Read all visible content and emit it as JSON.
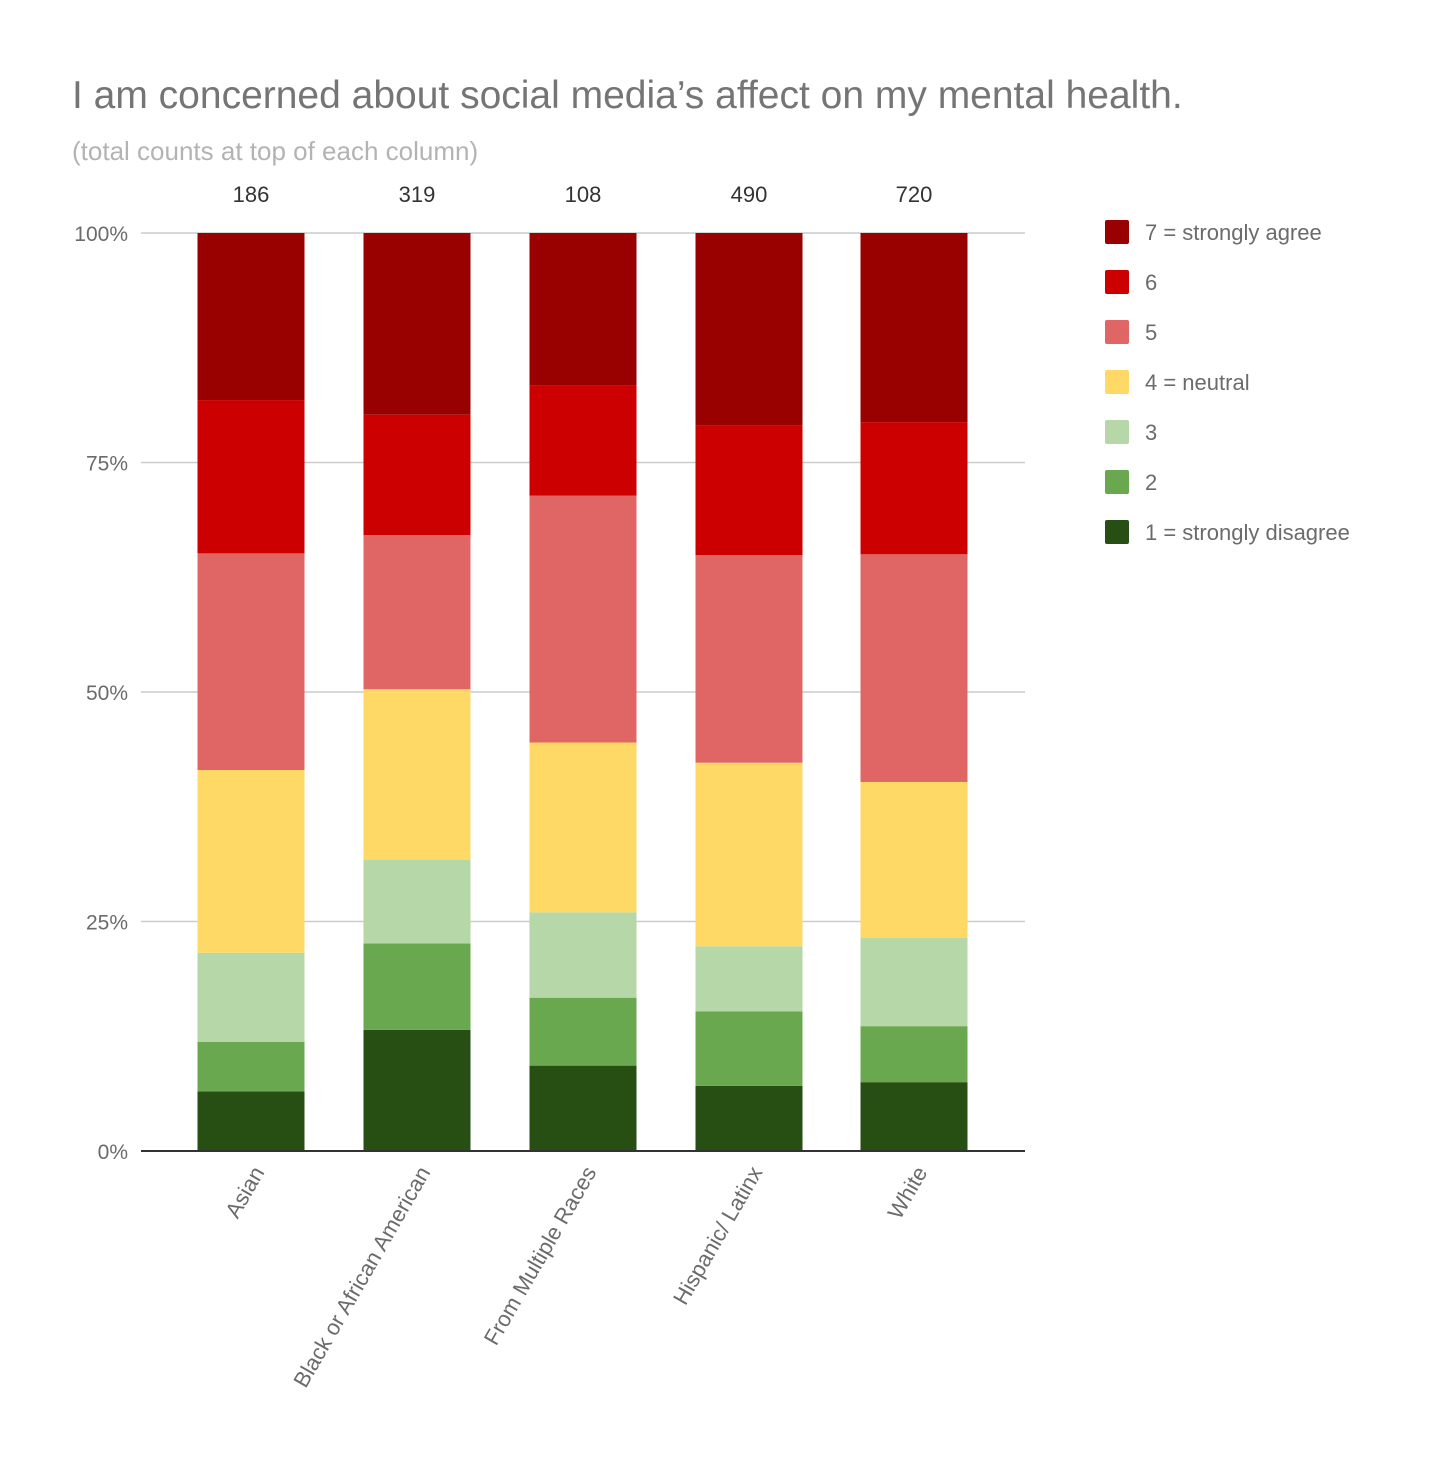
{
  "chart_data": {
    "type": "bar",
    "stacked": true,
    "normalized": true,
    "title": "I am concerned about social media’s affect on my mental health.",
    "subtitle": "(total counts at top of each column)",
    "categories": [
      "Asian",
      "Black or African American",
      "From Multiple Races",
      "Hispanic/ Latinx",
      "White"
    ],
    "totals": [
      "186",
      "319",
      "108",
      "490",
      "720"
    ],
    "y_ticks": [
      "0%",
      "25%",
      "50%",
      "75%",
      "100%"
    ],
    "ylim": [
      0,
      100
    ],
    "grid": true,
    "legend_position": "right",
    "series": [
      {
        "name": "1 = strongly disagree",
        "color": "#274e13",
        "values": [
          6.5,
          13.2,
          9.3,
          7.1,
          7.5
        ]
      },
      {
        "name": "2",
        "color": "#6aa84f",
        "values": [
          5.4,
          9.4,
          7.4,
          8.1,
          6.1
        ]
      },
      {
        "name": "3",
        "color": "#b6d7a8",
        "values": [
          9.7,
          9.1,
          9.3,
          7.1,
          9.6
        ]
      },
      {
        "name": "4 = neutral",
        "color": "#ffd966",
        "values": [
          19.9,
          18.6,
          18.5,
          20.0,
          17.0
        ]
      },
      {
        "name": "5",
        "color": "#e06666",
        "values": [
          23.6,
          16.8,
          26.9,
          22.6,
          24.8
        ]
      },
      {
        "name": "6",
        "color": "#cc0000",
        "values": [
          16.7,
          13.1,
          12.0,
          14.1,
          14.4
        ]
      },
      {
        "name": "7 = strongly agree",
        "color": "#990000",
        "values": [
          18.2,
          19.8,
          16.6,
          21.0,
          20.6
        ]
      }
    ]
  }
}
